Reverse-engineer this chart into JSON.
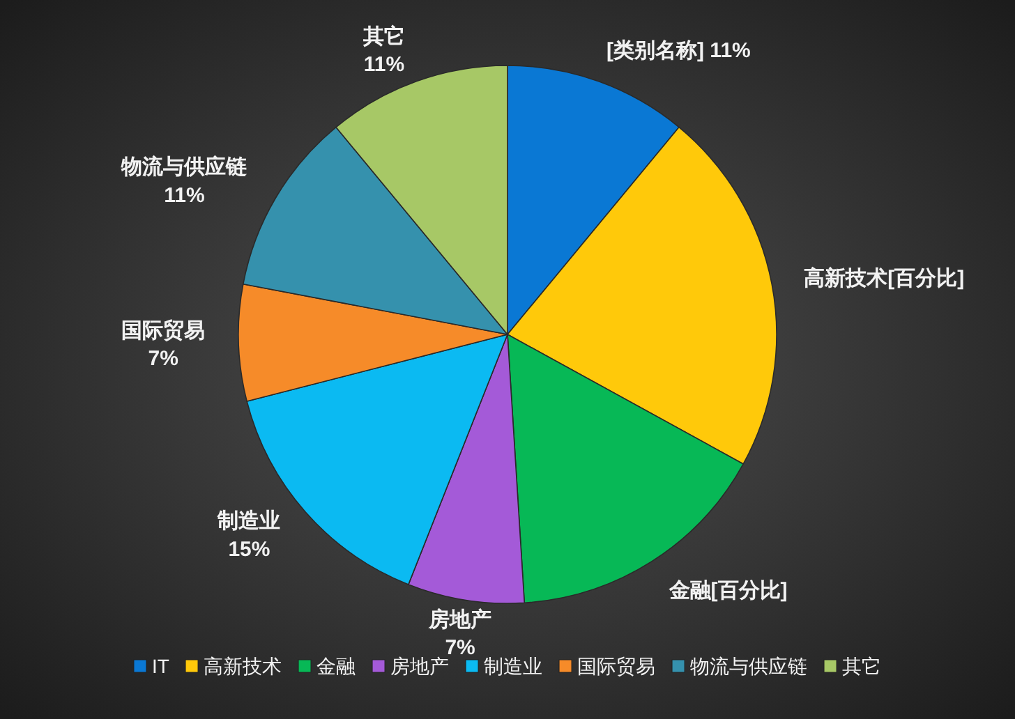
{
  "chart_data": {
    "type": "pie",
    "categories": [
      "IT",
      "高新技术",
      "金融",
      "房地产",
      "制造业",
      "国际贸易",
      "物流与供应链",
      "其它"
    ],
    "values": [
      11,
      22,
      16,
      7,
      15,
      7,
      11,
      11
    ],
    "colors": [
      "#0a78d4",
      "#ffc90a",
      "#07b856",
      "#a45ad8",
      "#0bbaf2",
      "#f68b29",
      "#3591ad",
      "#a7c866"
    ],
    "value_labels": [
      "[类别名称] 11%",
      "高新技术[百分比]",
      "金融[百分比]",
      "房地产\n7%",
      "制造业\n15%",
      "国际贸易\n7%",
      "物流与供应链\n11%",
      "其它\n11%"
    ],
    "legend": "bottom"
  }
}
